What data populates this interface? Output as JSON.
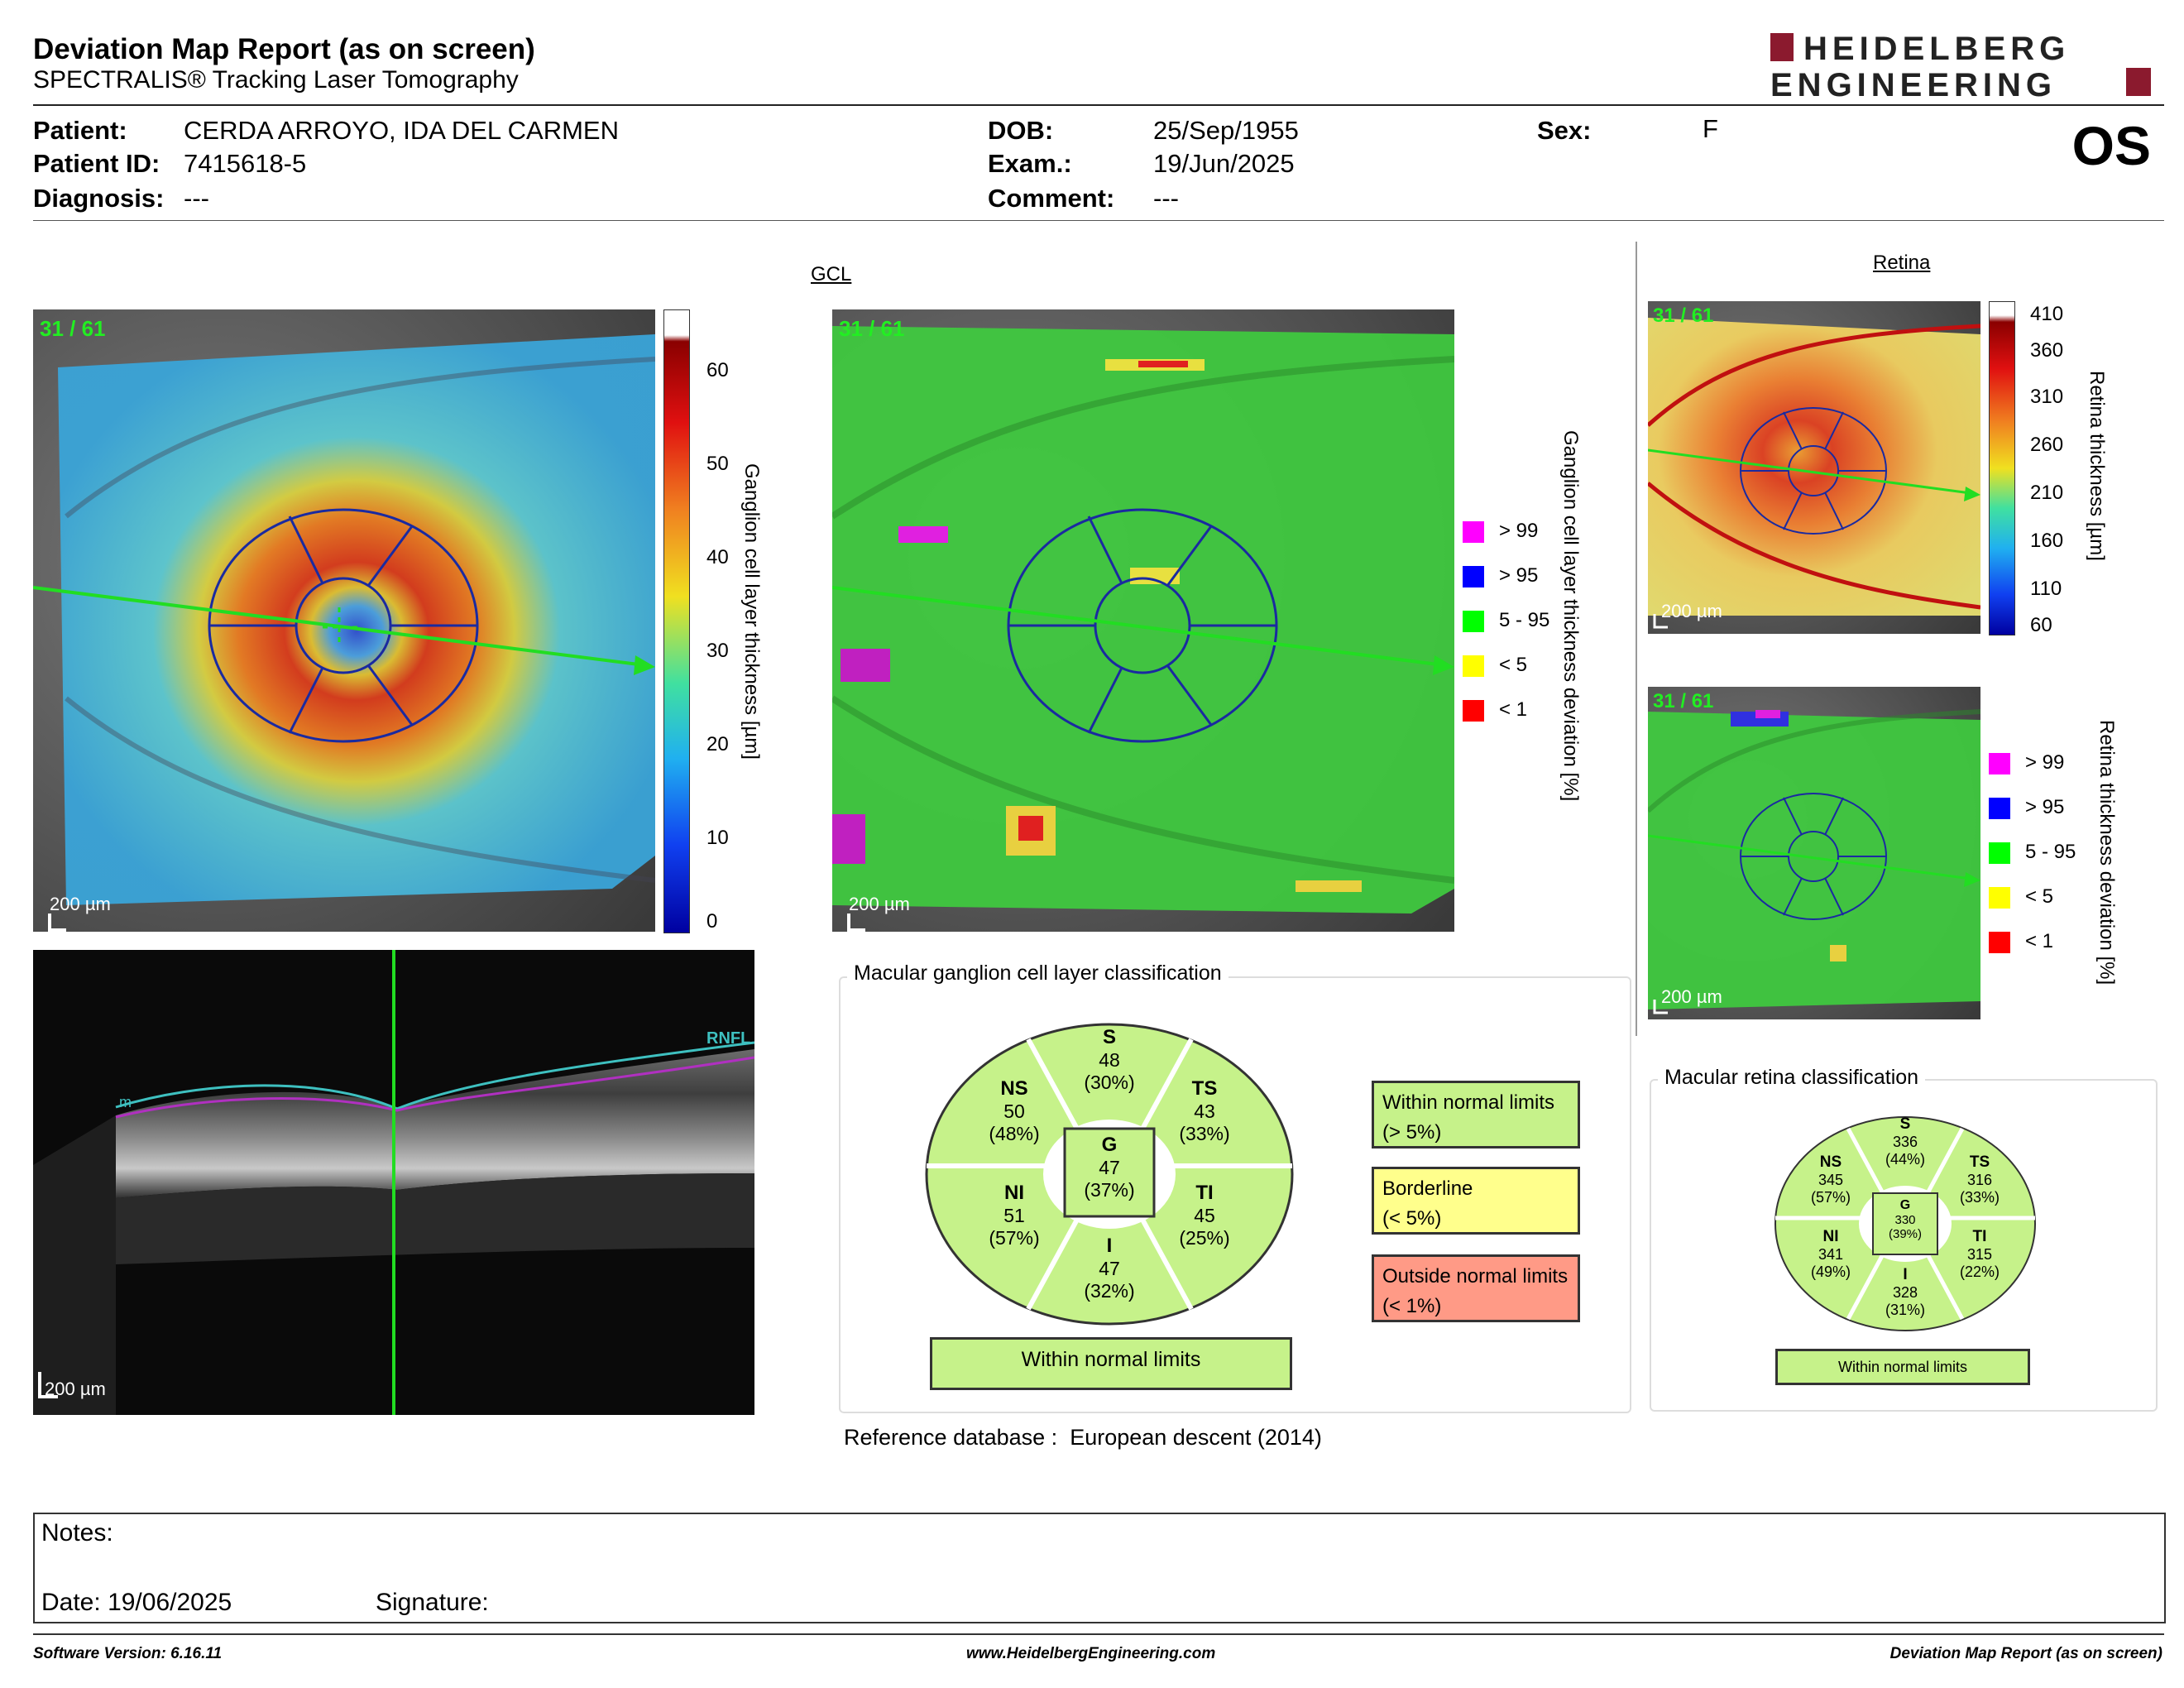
{
  "header": {
    "title": "Deviation Map Report (as on screen)",
    "subtitle": "SPECTRALIS® Tracking Laser Tomography",
    "logo_line1": "HEIDELBERG",
    "logo_line2": "ENGINEERING",
    "eye": "OS"
  },
  "patient": {
    "name_label": "Patient:",
    "name": "CERDA ARROYO, IDA DEL CARMEN",
    "id_label": "Patient ID:",
    "id": "7415618-5",
    "diagnosis_label": "Diagnosis:",
    "diagnosis": "---",
    "dob_label": "DOB:",
    "dob": "25/Sep/1955",
    "exam_label": "Exam.:",
    "exam": "19/Jun/2025",
    "comment_label": "Comment:",
    "comment": "---",
    "sex_label": "Sex:",
    "sex": "F"
  },
  "gcl": {
    "section_title": "GCL",
    "frame_counter": "31 / 61",
    "scale_bar": "200 µm",
    "thickness_axis_label": "Ganglion cell layer thickness [µm]",
    "thickness_ticks": [
      "60",
      "50",
      "40",
      "30",
      "20",
      "10",
      "0"
    ],
    "deviation_axis_label": "Ganglion cell layer thickness deviation [%]",
    "legend": [
      {
        "label": "> 99",
        "color": "#ff00ff"
      },
      {
        "label": "> 95",
        "color": "#0000ff"
      },
      {
        "label": "5 - 95",
        "color": "#00ff00"
      },
      {
        "label": "< 5",
        "color": "#ffff00"
      },
      {
        "label": "< 1",
        "color": "#ff0000"
      }
    ],
    "bscan_layer_rnfl": "RNFL",
    "bscan_layer_ilm": "m",
    "classification": {
      "title": "Macular ganglion cell layer classification",
      "sectors": {
        "S": {
          "name": "S",
          "value": "48",
          "pct": "(30%)"
        },
        "NS": {
          "name": "NS",
          "value": "50",
          "pct": "(48%)"
        },
        "TS": {
          "name": "TS",
          "value": "43",
          "pct": "(33%)"
        },
        "G": {
          "name": "G",
          "value": "47",
          "pct": "(37%)"
        },
        "NI": {
          "name": "NI",
          "value": "51",
          "pct": "(57%)"
        },
        "TI": {
          "name": "TI",
          "value": "45",
          "pct": "(25%)"
        },
        "I": {
          "name": "I",
          "value": "47",
          "pct": "(32%)"
        }
      },
      "result": "Within normal limits",
      "key": [
        {
          "line1": "Within normal limits",
          "line2": "(> 5%)",
          "color": "#c6f28a"
        },
        {
          "line1": "Borderline",
          "line2": "(< 5%)",
          "color": "#ffff8c"
        },
        {
          "line1": "Outside normal limits",
          "line2": "(< 1%)",
          "color": "#ff9a86"
        }
      ]
    },
    "reference_label": "Reference database :",
    "reference_value": "European descent (2014)"
  },
  "retina": {
    "section_title": "Retina",
    "frame_counter": "31 / 61",
    "scale_bar": "200 µm",
    "thickness_axis_label": "Retina thickness [µm]",
    "thickness_ticks": [
      "410",
      "360",
      "310",
      "260",
      "210",
      "160",
      "110",
      "60"
    ],
    "deviation_axis_label": "Retina thickness deviation [%]",
    "legend": [
      {
        "label": "> 99",
        "color": "#ff00ff"
      },
      {
        "label": "> 95",
        "color": "#0000ff"
      },
      {
        "label": "5 - 95",
        "color": "#00ff00"
      },
      {
        "label": "< 5",
        "color": "#ffff00"
      },
      {
        "label": "< 1",
        "color": "#ff0000"
      }
    ],
    "classification": {
      "title": "Macular retina classification",
      "sectors": {
        "S": {
          "name": "S",
          "value": "336",
          "pct": "(44%)"
        },
        "NS": {
          "name": "NS",
          "value": "345",
          "pct": "(57%)"
        },
        "TS": {
          "name": "TS",
          "value": "316",
          "pct": "(33%)"
        },
        "G": {
          "name": "G",
          "value": "330",
          "pct": "(39%)"
        },
        "NI": {
          "name": "NI",
          "value": "341",
          "pct": "(49%)"
        },
        "TI": {
          "name": "TI",
          "value": "315",
          "pct": "(22%)"
        },
        "I": {
          "name": "I",
          "value": "328",
          "pct": "(31%)"
        }
      },
      "result": "Within normal limits"
    }
  },
  "notes": {
    "notes_label": "Notes:",
    "date_label": "Date:",
    "date": "19/06/2025",
    "signature_label": "Signature:"
  },
  "footer": {
    "software": "Software Version: 6.16.11",
    "website": "www.HeidelbergEngineering.com",
    "report_name": "Deviation Map Report (as on screen)"
  }
}
